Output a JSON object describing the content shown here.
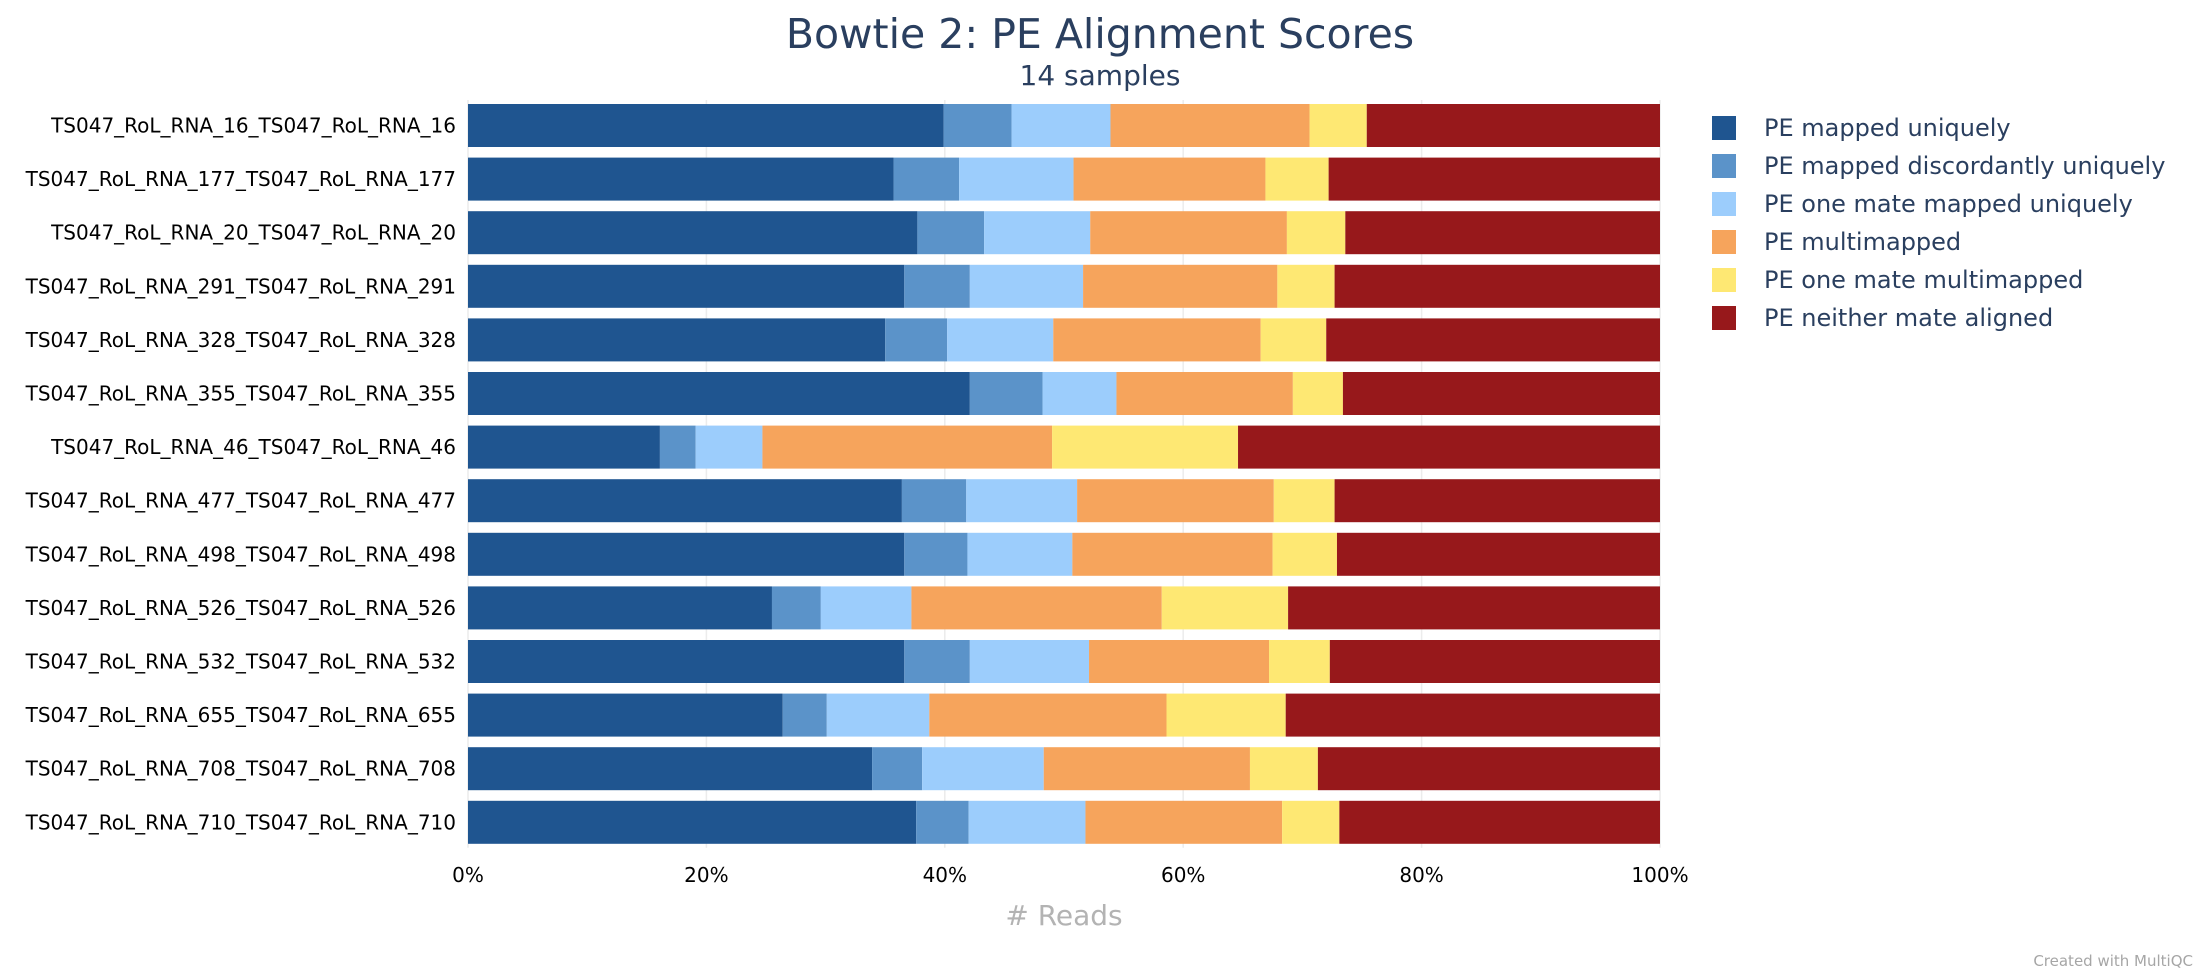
{
  "chart_data": {
    "type": "bar",
    "orientation": "horizontal",
    "stacked": true,
    "normalized": true,
    "title": "Bowtie 2: PE Alignment Scores",
    "subtitle": "14 samples",
    "xlabel": "# Reads",
    "xlim": [
      0,
      100
    ],
    "x_ticks": [
      "0%",
      "20%",
      "40%",
      "60%",
      "80%",
      "100%"
    ],
    "legend_position": "right",
    "credit": "Created with MultiQC",
    "categories": [
      "TS047_RoL_RNA_16_TS047_RoL_RNA_16",
      "TS047_RoL_RNA_177_TS047_RoL_RNA_177",
      "TS047_RoL_RNA_20_TS047_RoL_RNA_20",
      "TS047_RoL_RNA_291_TS047_RoL_RNA_291",
      "TS047_RoL_RNA_328_TS047_RoL_RNA_328",
      "TS047_RoL_RNA_355_TS047_RoL_RNA_355",
      "TS047_RoL_RNA_46_TS047_RoL_RNA_46",
      "TS047_RoL_RNA_477_TS047_RoL_RNA_477",
      "TS047_RoL_RNA_498_TS047_RoL_RNA_498",
      "TS047_RoL_RNA_526_TS047_RoL_RNA_526",
      "TS047_RoL_RNA_532_TS047_RoL_RNA_532",
      "TS047_RoL_RNA_655_TS047_RoL_RNA_655",
      "TS047_RoL_RNA_708_TS047_RoL_RNA_708",
      "TS047_RoL_RNA_710_TS047_RoL_RNA_710"
    ],
    "series": [
      {
        "name": "PE mapped uniquely",
        "color": "#1f5590",
        "values": [
          39.9,
          35.7,
          37.7,
          36.6,
          35.0,
          42.1,
          16.1,
          36.4,
          36.6,
          25.5,
          36.6,
          26.4,
          33.9,
          37.6
        ]
      },
      {
        "name": "PE mapped discordantly uniquely",
        "color": "#5b93c9",
        "values": [
          5.7,
          5.5,
          5.6,
          5.5,
          5.2,
          6.1,
          3.0,
          5.4,
          5.3,
          4.1,
          5.5,
          3.7,
          4.2,
          4.4
        ]
      },
      {
        "name": "PE one mate mapped uniquely",
        "color": "#9ccdfc",
        "values": [
          8.3,
          9.6,
          8.9,
          9.5,
          8.9,
          6.2,
          5.6,
          9.3,
          8.8,
          7.6,
          10.0,
          8.6,
          10.2,
          9.8
        ]
      },
      {
        "name": "PE multimapped",
        "color": "#f6a45c",
        "values": [
          16.7,
          16.1,
          16.5,
          16.3,
          17.4,
          14.8,
          24.3,
          16.5,
          16.8,
          21.0,
          15.1,
          19.9,
          17.3,
          16.5
        ]
      },
      {
        "name": "PE one mate multimapped",
        "color": "#fee873",
        "values": [
          4.8,
          5.3,
          4.9,
          4.8,
          5.5,
          4.2,
          15.6,
          5.1,
          5.4,
          10.6,
          5.1,
          10.0,
          5.7,
          4.8
        ]
      },
      {
        "name": "PE neither mate aligned",
        "color": "#97181b",
        "values": [
          24.6,
          27.8,
          26.4,
          27.3,
          28.0,
          26.6,
          35.4,
          27.3,
          27.1,
          31.2,
          27.7,
          31.4,
          28.7,
          26.9
        ]
      }
    ]
  }
}
